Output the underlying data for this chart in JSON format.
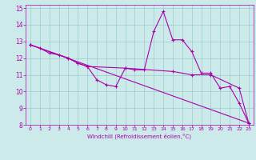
{
  "title": "",
  "xlabel": "Windchill (Refroidissement éolien,°C)",
  "ylabel": "",
  "bg_color": "#cceaea",
  "line_color": "#aa00aa",
  "grid_color": "#99cccc",
  "xlim": [
    -0.5,
    23.5
  ],
  "ylim": [
    8,
    15.2
  ],
  "xticks": [
    0,
    1,
    2,
    3,
    4,
    5,
    6,
    7,
    8,
    9,
    10,
    11,
    12,
    13,
    14,
    15,
    16,
    17,
    18,
    19,
    20,
    21,
    22,
    23
  ],
  "yticks": [
    8,
    9,
    10,
    11,
    12,
    13,
    14,
    15
  ],
  "line1_x": [
    0,
    1,
    2,
    3,
    4,
    5,
    6,
    7,
    8,
    9,
    10,
    11,
    12,
    13,
    14,
    15,
    16,
    17,
    18,
    19,
    20,
    21,
    22,
    23
  ],
  "line1_y": [
    12.8,
    12.6,
    12.3,
    12.2,
    12.0,
    11.7,
    11.5,
    10.7,
    10.4,
    10.3,
    11.4,
    11.3,
    11.3,
    13.6,
    14.8,
    13.1,
    13.1,
    12.4,
    11.1,
    11.1,
    10.2,
    10.3,
    9.3,
    8.1
  ],
  "line2_x": [
    0,
    4,
    5,
    6,
    10,
    15,
    17,
    19,
    22,
    23
  ],
  "line2_y": [
    12.8,
    12.0,
    11.7,
    11.5,
    11.4,
    11.2,
    11.0,
    11.0,
    10.2,
    8.1
  ],
  "line3_x": [
    0,
    23
  ],
  "line3_y": [
    12.8,
    8.1
  ]
}
